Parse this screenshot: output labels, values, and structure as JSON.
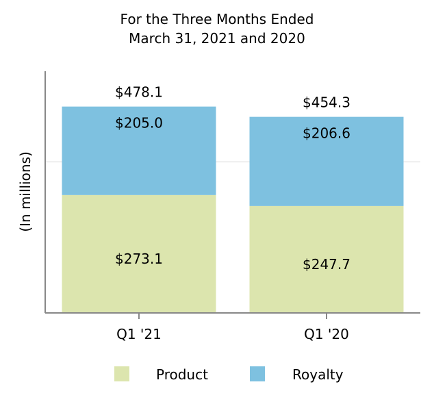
{
  "chart_data": {
    "type": "bar",
    "stacked": true,
    "title": [
      "For the Three Months Ended",
      "March 31, 2021 and 2020"
    ],
    "xlabel": "",
    "ylabel": "(In millions)",
    "ylim": [
      0,
      560
    ],
    "grid": "horizontal",
    "categories": [
      "Q1 '21",
      "Q1 '20"
    ],
    "series": [
      {
        "name": "Product",
        "color": "#dce5ae",
        "values": [
          273.1,
          247.7
        ],
        "labels": [
          "$273.1",
          "$247.7"
        ]
      },
      {
        "name": "Royalty",
        "color": "#7ec1e0",
        "values": [
          205.0,
          206.6
        ],
        "labels": [
          "$205.0",
          "$206.6"
        ]
      }
    ],
    "totals": [
      "$478.1",
      "$454.3"
    ],
    "gridline_values": [
      350
    ],
    "legend_position": "bottom"
  },
  "colors": {
    "axis": "#888888",
    "grid": "#e6e6e6",
    "text": "#000000"
  }
}
